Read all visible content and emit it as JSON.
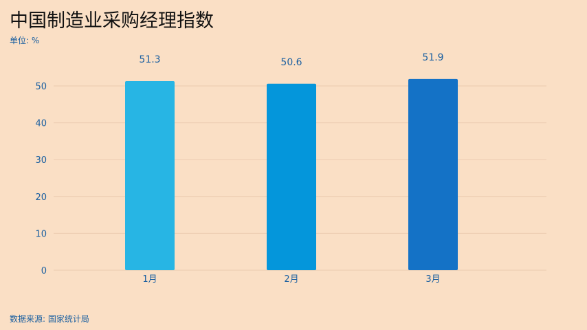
{
  "title": "中国制造业采购经理指数",
  "unit_label": "单位: %",
  "source_label": "数据来源: 国家统计局",
  "colors": {
    "background": "#FADFC5",
    "gridline": "#EBCBB0",
    "axis_text": "#1a5fa0",
    "bar_1": "#27B5E4",
    "bar_2": "#0496DB",
    "bar_3": "#1472C6"
  },
  "chart_data": {
    "type": "bar",
    "categories": [
      "1月",
      "2月",
      "3月"
    ],
    "values": [
      51.3,
      50.6,
      51.9
    ],
    "data_labels": [
      "51.3",
      "50.6",
      "51.9"
    ],
    "title": "中国制造业采购经理指数",
    "ylabel": "单位: %",
    "ylim": [
      0,
      60
    ],
    "yticks": [
      0,
      10,
      20,
      30,
      40,
      50
    ],
    "grid": true
  }
}
